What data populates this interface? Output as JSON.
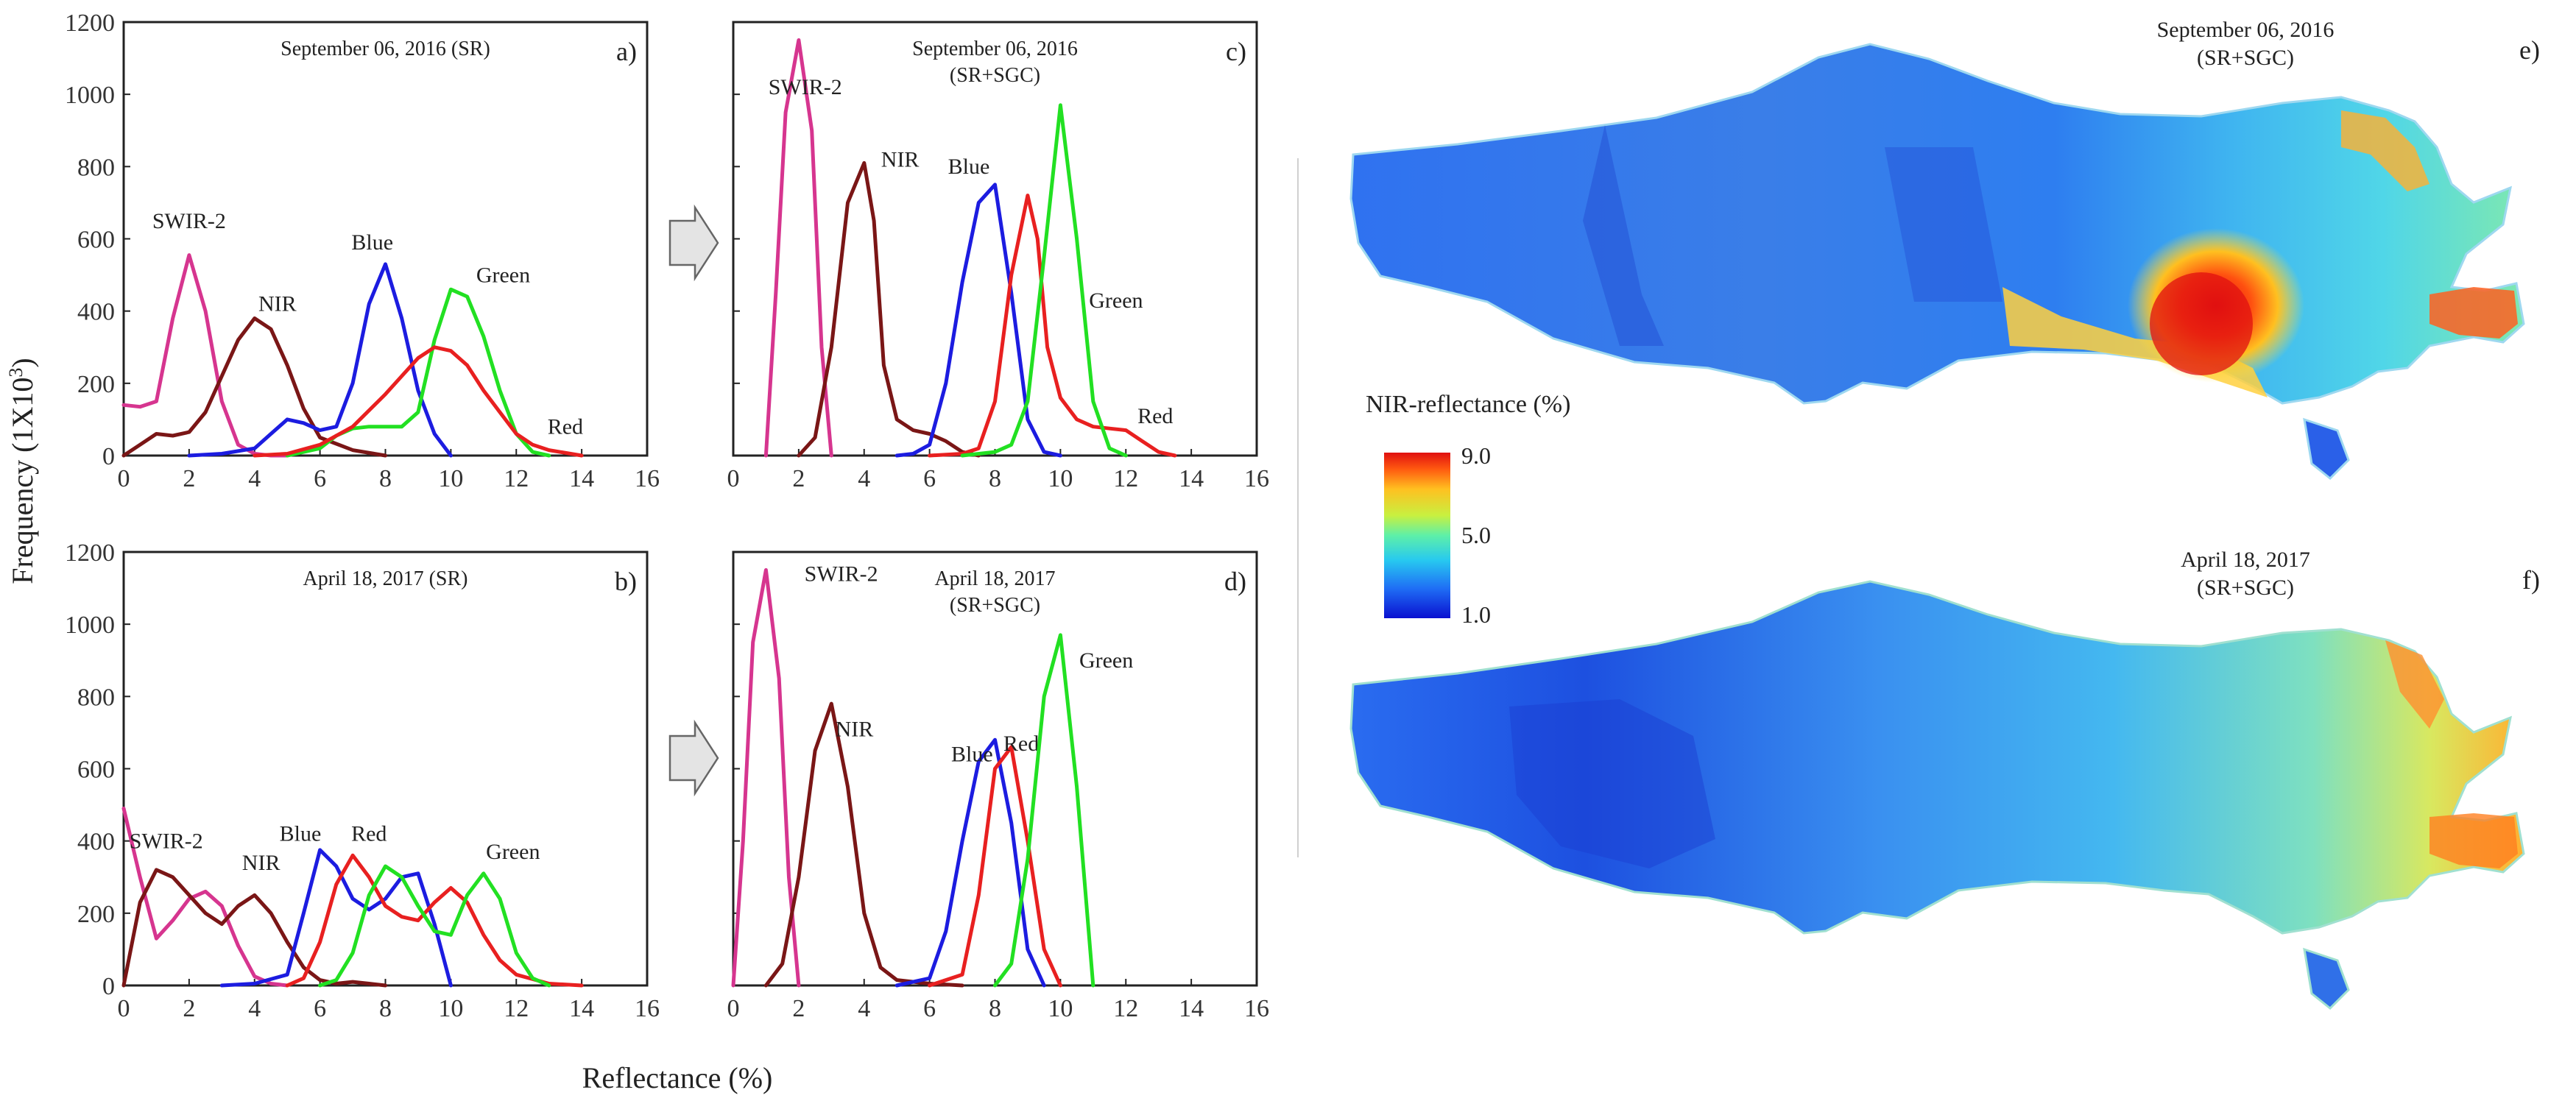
{
  "figure": {
    "y_axis_label": "Frequency (1X10",
    "y_axis_label_sup": "3",
    "y_axis_label_end": ")",
    "x_axis_label": "Reflectance (%)"
  },
  "colors": {
    "SWIR-2": "#d6358f",
    "NIR": "#7a1616",
    "Blue": "#1c1ce0",
    "Red": "#e82020",
    "Green": "#22e022"
  },
  "chart_data": [
    {
      "type": "line",
      "panel_id": "a",
      "panel_tag": "a)",
      "title_lines": [
        "September 06, 2016 (SR)"
      ],
      "xlim": [
        0,
        16
      ],
      "ylim": [
        0,
        1200
      ],
      "xticks": [
        0,
        2,
        4,
        6,
        8,
        10,
        12,
        14,
        16
      ],
      "yticks": [
        0,
        200,
        400,
        600,
        800,
        1000,
        1200
      ],
      "xlabel": "Reflectance (%)",
      "ylabel": "Frequency (1X10^3)",
      "series": [
        {
          "name": "SWIR-2",
          "label": "SWIR-2",
          "x": [
            0,
            0.5,
            1,
            1.5,
            2,
            2.5,
            3,
            3.5,
            4,
            4.5,
            5
          ],
          "y": [
            140,
            135,
            150,
            380,
            555,
            400,
            150,
            30,
            5,
            0,
            0
          ]
        },
        {
          "name": "NIR",
          "label": "NIR",
          "x": [
            0,
            0.5,
            1,
            1.5,
            2,
            2.5,
            3,
            3.5,
            4,
            4.5,
            5,
            5.5,
            6,
            7,
            8
          ],
          "y": [
            0,
            30,
            60,
            55,
            65,
            120,
            220,
            320,
            380,
            350,
            250,
            130,
            50,
            15,
            0
          ]
        },
        {
          "name": "Blue",
          "label": "Blue",
          "x": [
            2,
            3,
            4,
            4.5,
            5,
            5.5,
            6,
            6.5,
            7,
            7.5,
            8,
            8.5,
            9,
            9.5,
            10
          ],
          "y": [
            0,
            5,
            20,
            60,
            100,
            90,
            70,
            80,
            200,
            420,
            530,
            380,
            180,
            60,
            0
          ]
        },
        {
          "name": "Green",
          "label": "Green",
          "x": [
            5,
            6,
            6.5,
            7,
            7.5,
            8,
            8.5,
            9,
            9.5,
            10,
            10.5,
            11,
            11.5,
            12,
            12.5,
            13
          ],
          "y": [
            0,
            20,
            55,
            75,
            80,
            80,
            80,
            120,
            320,
            460,
            440,
            330,
            180,
            60,
            10,
            0
          ]
        },
        {
          "name": "Red",
          "label": "Red",
          "x": [
            4,
            5,
            6,
            7,
            8,
            8.5,
            9,
            9.5,
            10,
            10.5,
            11,
            11.5,
            12,
            12.5,
            13,
            14
          ],
          "y": [
            0,
            5,
            30,
            80,
            170,
            220,
            270,
            300,
            290,
            250,
            180,
            120,
            60,
            30,
            15,
            0
          ]
        }
      ]
    },
    {
      "type": "line",
      "panel_id": "b",
      "panel_tag": "b)",
      "title_lines": [
        "April 18, 2017 (SR)"
      ],
      "xlim": [
        0,
        16
      ],
      "ylim": [
        0,
        1200
      ],
      "xticks": [
        0,
        2,
        4,
        6,
        8,
        10,
        12,
        14,
        16
      ],
      "yticks": [
        0,
        200,
        400,
        600,
        800,
        1000,
        1200
      ],
      "xlabel": "Reflectance (%)",
      "ylabel": "Frequency (1X10^3)",
      "series": [
        {
          "name": "SWIR-2",
          "label": "SWIR-2",
          "x": [
            0,
            0.5,
            1,
            1.5,
            2,
            2.5,
            3,
            3.5,
            4,
            4.5,
            5
          ],
          "y": [
            490,
            300,
            130,
            180,
            240,
            260,
            220,
            110,
            25,
            5,
            0
          ]
        },
        {
          "name": "NIR",
          "label": "NIR",
          "x": [
            0,
            0.5,
            1,
            1.5,
            2,
            2.5,
            3,
            3.5,
            4,
            4.5,
            5,
            5.5,
            6,
            6.5,
            7,
            7.5,
            8
          ],
          "y": [
            0,
            230,
            320,
            300,
            250,
            200,
            170,
            220,
            250,
            200,
            120,
            50,
            15,
            5,
            10,
            5,
            0
          ]
        },
        {
          "name": "Blue",
          "label": "Blue",
          "x": [
            3,
            4,
            5,
            5.5,
            6,
            6.5,
            7,
            7.5,
            8,
            8.5,
            9,
            9.5,
            10
          ],
          "y": [
            0,
            5,
            30,
            200,
            375,
            330,
            240,
            210,
            240,
            300,
            310,
            170,
            0
          ]
        },
        {
          "name": "Red",
          "label": "Red",
          "x": [
            5,
            5.5,
            6,
            6.5,
            7,
            7.5,
            8,
            8.5,
            9,
            9.5,
            10,
            10.5,
            11,
            11.5,
            12,
            13,
            14
          ],
          "y": [
            0,
            20,
            120,
            280,
            360,
            300,
            220,
            190,
            180,
            230,
            270,
            230,
            140,
            70,
            30,
            5,
            0
          ]
        },
        {
          "name": "Green",
          "label": "Green",
          "x": [
            6,
            6.5,
            7,
            7.5,
            8,
            8.5,
            9,
            9.5,
            10,
            10.5,
            11,
            11.5,
            12,
            12.5,
            13
          ],
          "y": [
            0,
            15,
            90,
            250,
            330,
            300,
            220,
            150,
            140,
            250,
            310,
            240,
            90,
            20,
            0
          ]
        }
      ]
    },
    {
      "type": "line",
      "panel_id": "c",
      "panel_tag": "c)",
      "title_lines": [
        "September 06, 2016",
        "(SR+SGC)"
      ],
      "xlim": [
        0,
        16
      ],
      "ylim": [
        0,
        1200
      ],
      "xticks": [
        0,
        2,
        4,
        6,
        8,
        10,
        12,
        14,
        16
      ],
      "yticks": [
        0,
        200,
        400,
        600,
        800,
        1000,
        1200
      ],
      "xlabel": "Reflectance (%)",
      "ylabel": "Frequency (1X10^3)",
      "series": [
        {
          "name": "SWIR-2",
          "label": "SWIR-2",
          "x": [
            1,
            1.3,
            1.6,
            2,
            2.4,
            2.7,
            3
          ],
          "y": [
            0,
            450,
            950,
            1150,
            900,
            300,
            0
          ]
        },
        {
          "name": "NIR",
          "label": "NIR",
          "x": [
            2,
            2.5,
            3,
            3.5,
            4,
            4.3,
            4.6,
            5,
            5.5,
            6,
            6.5,
            7,
            7.5
          ],
          "y": [
            0,
            50,
            300,
            700,
            810,
            650,
            250,
            100,
            70,
            60,
            40,
            10,
            0
          ]
        },
        {
          "name": "Blue",
          "label": "Blue",
          "x": [
            5,
            5.5,
            6,
            6.5,
            7,
            7.5,
            8,
            8.5,
            9,
            9.5,
            10
          ],
          "y": [
            0,
            5,
            30,
            200,
            480,
            700,
            750,
            450,
            100,
            10,
            0
          ]
        },
        {
          "name": "Red",
          "label": "Red",
          "x": [
            6,
            7,
            7.5,
            8,
            8.5,
            9,
            9.3,
            9.6,
            10,
            10.5,
            11,
            11.5,
            12,
            12.5,
            13,
            13.5
          ],
          "y": [
            0,
            5,
            20,
            150,
            500,
            720,
            600,
            300,
            160,
            100,
            80,
            75,
            70,
            40,
            10,
            0
          ]
        },
        {
          "name": "Green",
          "label": "Green",
          "x": [
            7,
            8,
            8.5,
            9,
            9.5,
            10,
            10.5,
            11,
            11.5,
            12
          ],
          "y": [
            0,
            10,
            30,
            150,
            550,
            970,
            600,
            150,
            20,
            0
          ]
        }
      ]
    },
    {
      "type": "line",
      "panel_id": "d",
      "panel_tag": "d)",
      "title_lines": [
        "April 18, 2017",
        "(SR+SGC)"
      ],
      "xlim": [
        0,
        16
      ],
      "ylim": [
        0,
        1200
      ],
      "xticks": [
        0,
        2,
        4,
        6,
        8,
        10,
        12,
        14,
        16
      ],
      "yticks": [
        0,
        200,
        400,
        600,
        800,
        1000,
        1200
      ],
      "xlabel": "Reflectance (%)",
      "ylabel": "Frequency (1X10^3)",
      "series": [
        {
          "name": "SWIR-2",
          "label": "SWIR-2",
          "x": [
            0,
            0.3,
            0.6,
            1,
            1.4,
            1.7,
            2
          ],
          "y": [
            0,
            400,
            950,
            1150,
            850,
            300,
            0
          ]
        },
        {
          "name": "NIR",
          "label": "NIR",
          "x": [
            1,
            1.5,
            2,
            2.5,
            3,
            3.5,
            4,
            4.5,
            5,
            6,
            7
          ],
          "y": [
            0,
            60,
            300,
            650,
            780,
            550,
            200,
            50,
            15,
            5,
            0
          ]
        },
        {
          "name": "Blue",
          "label": "Blue",
          "x": [
            5,
            6,
            6.5,
            7,
            7.5,
            8,
            8.5,
            9,
            9.5
          ],
          "y": [
            0,
            20,
            150,
            400,
            620,
            680,
            450,
            100,
            0
          ]
        },
        {
          "name": "Red",
          "label": "Red",
          "x": [
            6,
            7,
            7.5,
            8,
            8.5,
            9,
            9.5,
            10
          ],
          "y": [
            0,
            30,
            250,
            600,
            660,
            400,
            100,
            0
          ]
        },
        {
          "name": "Green",
          "label": "Green",
          "x": [
            8,
            8.5,
            9,
            9.5,
            10,
            10.5,
            11
          ],
          "y": [
            0,
            60,
            350,
            800,
            970,
            550,
            0
          ]
        }
      ]
    }
  ],
  "maps": [
    {
      "panel_tag": "e)",
      "title_lines": [
        "September 06, 2016",
        "(SR+SGC)"
      ]
    },
    {
      "panel_tag": "f)",
      "title_lines": [
        "April 18, 2017",
        "(SR+SGC)"
      ]
    }
  ],
  "colorbar": {
    "title": "NIR-reflectance (%)",
    "max_label": "9.0",
    "mid_label": "5.0",
    "min_label": "1.0",
    "range": [
      1.0,
      9.0
    ]
  }
}
